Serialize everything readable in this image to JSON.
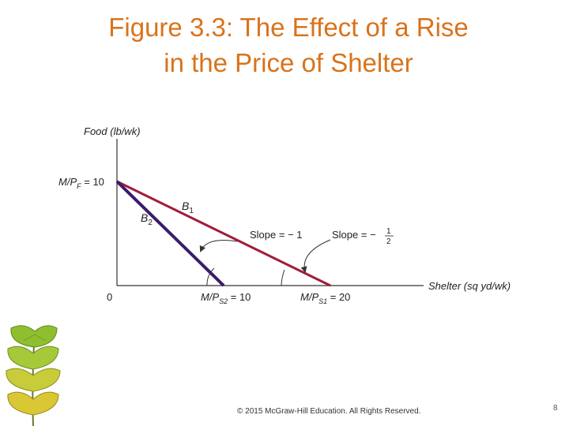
{
  "title": {
    "line1": "Figure 3.3: The Effect of a Rise",
    "line2": "in the Price of Shelter"
  },
  "diagram": {
    "y_axis_label": "Food (lb/wk)",
    "x_axis_label": "Shelter (sq yd/wk)",
    "origin_label": "0",
    "y_intercept": {
      "prefix": "M/P",
      "sub": "F",
      "suffix": " = 10"
    },
    "x_intercept_b2": {
      "prefix": "M/P",
      "sub": "S2",
      "suffix": " = 10"
    },
    "x_intercept_b1": {
      "prefix": "M/P",
      "sub": "S1",
      "suffix": " = 20"
    },
    "b1_label": {
      "main": "B",
      "sub": "1"
    },
    "b2_label": {
      "main": "B",
      "sub": "2"
    },
    "slope_b2_label": "Slope = − 1",
    "slope_b1_label": {
      "text": "Slope = −",
      "num": "1",
      "den": "2"
    },
    "colors": {
      "b1_line": "#a01d3a",
      "b2_line": "#3c1b6b",
      "axis": "#333333",
      "title": "#d9731b"
    }
  },
  "chart_data": {
    "type": "line",
    "series": [
      {
        "name": "B1",
        "x": [
          0,
          20
        ],
        "y": [
          10,
          0
        ]
      },
      {
        "name": "B2",
        "x": [
          0,
          10
        ],
        "y": [
          10,
          0
        ]
      }
    ],
    "xlabel": "Shelter (sq yd/wk)",
    "ylabel": "Food (lb/wk)"
  },
  "footer": {
    "copyright": "© 2015 McGraw-Hill Education. All Rights Reserved.",
    "page_number": "8"
  },
  "decoration": {
    "icon": "ginkgo-leaves-icon"
  }
}
